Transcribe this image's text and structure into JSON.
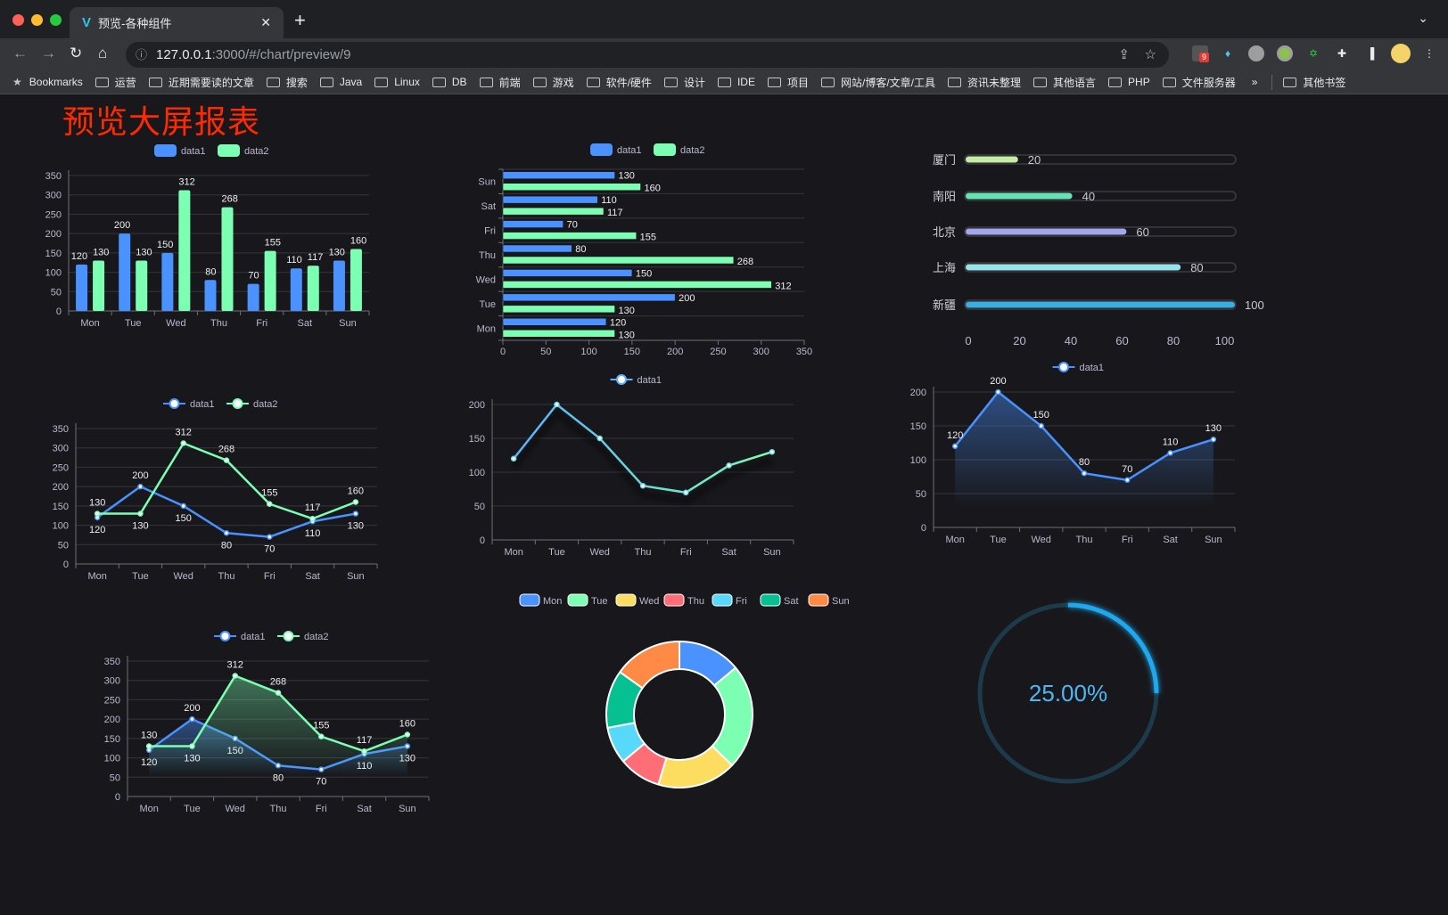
{
  "browser": {
    "tab_title": "预览-各种组件",
    "url_host": "127.0.0.1",
    "url_rest": ":3000/#/chart/preview/9",
    "bookmarks_label": "Bookmarks",
    "bookmarks": [
      "运营",
      "近期需要读的文章",
      "搜索",
      "Java",
      "Linux",
      "DB",
      "前端",
      "游戏",
      "软件/硬件",
      "设计",
      "IDE",
      "项目",
      "网站/博客/文章/工具",
      "资讯未整理",
      "其他语言",
      "PHP",
      "文件服务器"
    ],
    "more": "»",
    "other_bookmarks": "其他书签",
    "extension_badge": "9"
  },
  "page": {
    "title": "预览大屏报表"
  },
  "chart_data": [
    {
      "type": "bar",
      "orientation": "vertical",
      "categories": [
        "Mon",
        "Tue",
        "Wed",
        "Thu",
        "Fri",
        "Sat",
        "Sun"
      ],
      "series": [
        {
          "name": "data1",
          "values": [
            120,
            200,
            150,
            80,
            70,
            110,
            130
          ],
          "color": "#4992ff"
        },
        {
          "name": "data2",
          "values": [
            130,
            130,
            312,
            268,
            155,
            117,
            160
          ],
          "color": "#7cffb2"
        }
      ],
      "ylim": [
        0,
        350
      ],
      "yticks": [
        0,
        50,
        100,
        150,
        200,
        250,
        300,
        350
      ],
      "legend": "top",
      "grid": true,
      "data_labels": true
    },
    {
      "type": "bar",
      "orientation": "horizontal",
      "categories": [
        "Mon",
        "Tue",
        "Wed",
        "Thu",
        "Fri",
        "Sat",
        "Sun"
      ],
      "series": [
        {
          "name": "data1",
          "values": [
            120,
            200,
            150,
            80,
            70,
            110,
            130
          ],
          "color": "#4992ff"
        },
        {
          "name": "data2",
          "values": [
            130,
            130,
            312,
            268,
            155,
            117,
            160
          ],
          "color": "#7cffb2"
        }
      ],
      "xlim": [
        0,
        350
      ],
      "xticks": [
        0,
        50,
        100,
        150,
        200,
        250,
        300,
        350
      ],
      "legend": "top",
      "grid": true,
      "data_labels": true
    },
    {
      "type": "bar",
      "orientation": "horizontal-progress",
      "categories": [
        "厦门",
        "南阳",
        "北京",
        "上海",
        "新疆"
      ],
      "values": [
        20,
        40,
        60,
        80,
        100
      ],
      "colors": [
        "#c5eca5",
        "#66e3b4",
        "#a3a6ea",
        "#96e4ea",
        "#3aaee2"
      ],
      "xlim": [
        0,
        100
      ],
      "xticks": [
        0,
        20,
        40,
        60,
        80,
        100
      ],
      "data_labels": true
    },
    {
      "type": "line",
      "categories": [
        "Mon",
        "Tue",
        "Wed",
        "Thu",
        "Fri",
        "Sat",
        "Sun"
      ],
      "series": [
        {
          "name": "data1",
          "values": [
            120,
            200,
            150,
            80,
            70,
            110,
            130
          ],
          "color": "#4992ff"
        },
        {
          "name": "data2",
          "values": [
            130,
            130,
            312,
            268,
            155,
            117,
            160
          ],
          "color": "#7cffb2"
        }
      ],
      "ylim": [
        0,
        350
      ],
      "yticks": [
        0,
        50,
        100,
        150,
        200,
        250,
        300,
        350
      ],
      "legend": "top",
      "grid": true,
      "data_labels": true
    },
    {
      "type": "line",
      "categories": [
        "Mon",
        "Tue",
        "Wed",
        "Thu",
        "Fri",
        "Sat",
        "Sun"
      ],
      "series": [
        {
          "name": "data1",
          "values": [
            120,
            200,
            150,
            80,
            70,
            110,
            130
          ],
          "color": "#58b0ff",
          "color_end": "#7cffb2"
        }
      ],
      "ylim": [
        0,
        200
      ],
      "yticks": [
        0,
        50,
        100,
        150,
        200
      ],
      "legend": "top",
      "grid": true,
      "data_labels": false
    },
    {
      "type": "area",
      "categories": [
        "Mon",
        "Tue",
        "Wed",
        "Thu",
        "Fri",
        "Sat",
        "Sun"
      ],
      "series": [
        {
          "name": "data1",
          "values": [
            120,
            200,
            150,
            80,
            70,
            110,
            130
          ],
          "color": "#4992ff"
        }
      ],
      "ylim": [
        0,
        200
      ],
      "yticks": [
        0,
        50,
        100,
        150,
        200
      ],
      "legend": "top",
      "grid": true,
      "data_labels": true
    },
    {
      "type": "area",
      "categories": [
        "Mon",
        "Tue",
        "Wed",
        "Thu",
        "Fri",
        "Sat",
        "Sun"
      ],
      "series": [
        {
          "name": "data1",
          "values": [
            120,
            200,
            150,
            80,
            70,
            110,
            130
          ],
          "color": "#4992ff"
        },
        {
          "name": "data2",
          "values": [
            130,
            130,
            312,
            268,
            155,
            117,
            160
          ],
          "color": "#7cffb2"
        }
      ],
      "ylim": [
        0,
        350
      ],
      "yticks": [
        0,
        50,
        100,
        150,
        200,
        250,
        300,
        350
      ],
      "legend": "top",
      "grid": true,
      "data_labels": true
    },
    {
      "type": "pie",
      "variant": "donut",
      "categories": [
        "Mon",
        "Tue",
        "Wed",
        "Thu",
        "Fri",
        "Sat",
        "Sun"
      ],
      "values": [
        120,
        200,
        150,
        80,
        70,
        110,
        130
      ],
      "colors": [
        "#4992ff",
        "#7cffb2",
        "#fddd60",
        "#ff6e76",
        "#58d9f9",
        "#05c091",
        "#ff8a45"
      ],
      "legend": "top"
    },
    {
      "type": "gauge",
      "value": 25,
      "max": 100,
      "label": "25.00%",
      "color": "#1fa8ee",
      "track_color": "#1d3a4a"
    }
  ]
}
